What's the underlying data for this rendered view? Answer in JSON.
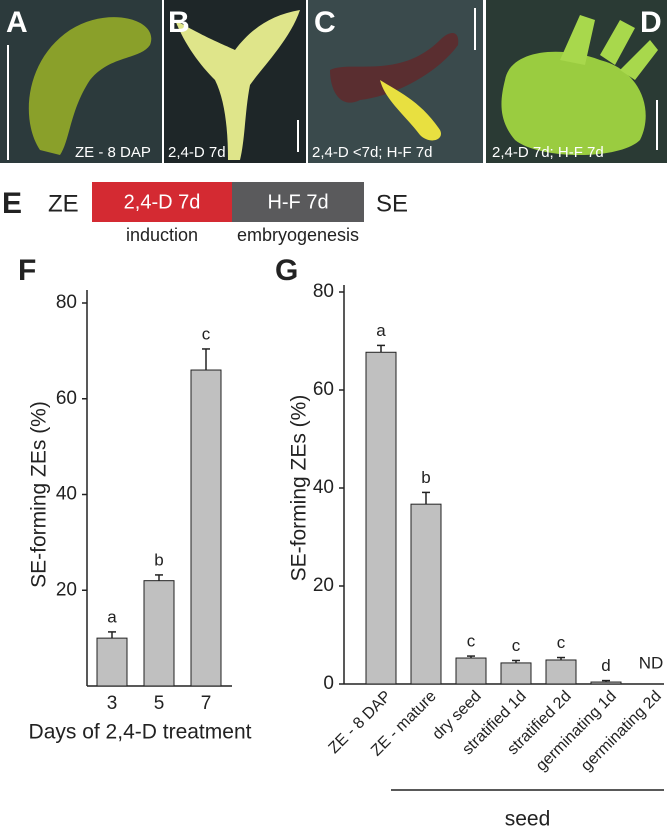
{
  "panels": [
    {
      "letter": "A",
      "caption": "ZE - 8 DAP"
    },
    {
      "letter": "B",
      "caption": "2,4-D 7d"
    },
    {
      "letter": "C",
      "caption": "2,4-D <7d; H-F 7d"
    },
    {
      "letter": "D",
      "caption": "2,4-D 7d; H-F 7d"
    }
  ],
  "scheme": {
    "letter": "E",
    "start": "ZE",
    "step1": "2,4-D  7d",
    "step2": "H-F 7d",
    "end": "SE",
    "step1_label": "induction",
    "step2_label": "embryogenesis"
  },
  "chart_data": [
    {
      "type": "bar",
      "panel": "F",
      "ylabel": "SE-forming ZEs (%)",
      "xlabel": "Days of 2,4-D treatment",
      "categories": [
        "3",
        "5",
        "7"
      ],
      "values": [
        10,
        22,
        66
      ],
      "errors": [
        1.3,
        1.2,
        4.4
      ],
      "letters": [
        "a",
        "b",
        "c"
      ],
      "color": "#c0c0c0",
      "ylim": [
        0,
        80
      ],
      "yticks": [
        20,
        40,
        60,
        80
      ],
      "grid": false
    },
    {
      "type": "bar",
      "panel": "G",
      "ylabel": "SE-forming ZEs (%)",
      "categories": [
        "ZE - 8 DAP",
        "ZE - mature",
        "dry seed",
        "stratified 1d",
        "stratified 2d",
        "germinating 1d",
        "germinating 2d"
      ],
      "values": [
        67.7,
        36.7,
        5.3,
        4.3,
        4.9,
        0.4,
        null
      ],
      "errors": [
        1.4,
        2.4,
        0.4,
        0.5,
        0.5,
        0.3,
        null
      ],
      "letters": [
        "a",
        "b",
        "c",
        "c",
        "c",
        "d",
        "ND"
      ],
      "color": "#c0c0c0",
      "group_label": "seed",
      "ylim": [
        0,
        80
      ],
      "yticks": [
        0,
        20,
        40,
        60,
        80
      ],
      "grid": false
    }
  ]
}
